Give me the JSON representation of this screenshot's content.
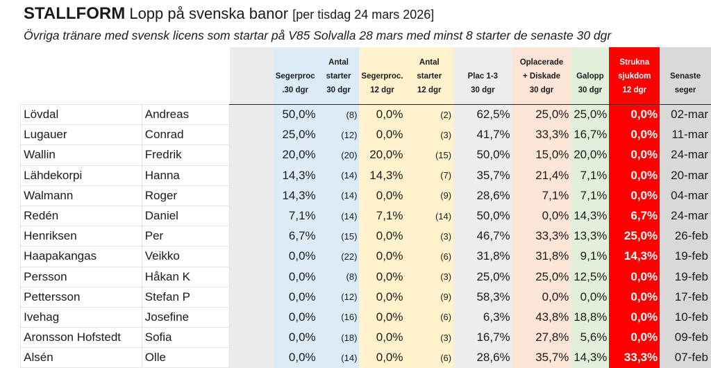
{
  "title": {
    "brand": "STALLFORM",
    "main": "Lopp på svenska banor",
    "date": "[per tisdag 24 mars 2026]"
  },
  "subtitle": "Övriga tränare med svensk licens som startar på V85 Solvalla 28 mars med minst 8 starter de senaste 30 dgr",
  "columns": [
    {
      "line1": "",
      "line2": "Segerproc",
      "line3": ".30 dgr"
    },
    {
      "line1": "Antal",
      "line2": "starter",
      "line3": "30 dgr"
    },
    {
      "line1": "",
      "line2": "Segerproc.",
      "line3": "12 dgr"
    },
    {
      "line1": "Antal",
      "line2": "starter",
      "line3": "12 dgr"
    },
    {
      "line1": "",
      "line2": "Plac 1-3",
      "line3": "30 dgr"
    },
    {
      "line1": "Oplacerade",
      "line2": "+ Diskade",
      "line3": "30 dgr"
    },
    {
      "line1": "",
      "line2": "Galopp",
      "line3": "30 dgr"
    },
    {
      "line1": "Strukna",
      "line2": "sjukdom",
      "line3": "12 dgr"
    },
    {
      "line1": "",
      "line2": "Senaste",
      "line3": "seger"
    }
  ],
  "colors": {
    "blue": "#ddebf7",
    "yellow": "#fff2cc",
    "plac": "#ededed",
    "pink": "#fce4d6",
    "green": "#e2efda",
    "red": "#ff0000",
    "last": "#d9d9d9"
  },
  "rows": [
    {
      "surname": "Lövdal",
      "first": "Andreas",
      "win30": "50,0%",
      "starts30": "(8)",
      "win12": "0,0%",
      "starts12": "(2)",
      "plac": "62,5%",
      "unplaced": "25,0%",
      "gallop": "25,0%",
      "scratched": "0,0%",
      "lastwin": "02-mar"
    },
    {
      "surname": "Lugauer",
      "first": "Conrad",
      "win30": "25,0%",
      "starts30": "(12)",
      "win12": "0,0%",
      "starts12": "(3)",
      "plac": "41,7%",
      "unplaced": "33,3%",
      "gallop": "16,7%",
      "scratched": "0,0%",
      "lastwin": "11-mar"
    },
    {
      "surname": "Wallin",
      "first": "Fredrik",
      "win30": "20,0%",
      "starts30": "(20)",
      "win12": "20,0%",
      "starts12": "(15)",
      "plac": "50,0%",
      "unplaced": "15,0%",
      "gallop": "20,0%",
      "scratched": "0,0%",
      "lastwin": "24-mar"
    },
    {
      "surname": "Lähdekorpi",
      "first": "Hanna",
      "win30": "14,3%",
      "starts30": "(14)",
      "win12": "14,3%",
      "starts12": "(7)",
      "plac": "35,7%",
      "unplaced": "21,4%",
      "gallop": "7,1%",
      "scratched": "0,0%",
      "lastwin": "20-mar"
    },
    {
      "surname": "Walmann",
      "first": "Roger",
      "win30": "14,3%",
      "starts30": "(14)",
      "win12": "0,0%",
      "starts12": "(9)",
      "plac": "28,6%",
      "unplaced": "7,1%",
      "gallop": "7,1%",
      "scratched": "0,0%",
      "lastwin": "04-mar"
    },
    {
      "surname": "Redén",
      "first": "Daniel",
      "win30": "7,1%",
      "starts30": "(14)",
      "win12": "7,1%",
      "starts12": "(14)",
      "plac": "50,0%",
      "unplaced": "0,0%",
      "gallop": "14,3%",
      "scratched": "6,7%",
      "lastwin": "24-mar"
    },
    {
      "surname": "Henriksen",
      "first": "Per",
      "win30": "6,7%",
      "starts30": "(15)",
      "win12": "0,0%",
      "starts12": "(3)",
      "plac": "46,7%",
      "unplaced": "33,3%",
      "gallop": "13,3%",
      "scratched": "25,0%",
      "lastwin": "26-feb"
    },
    {
      "surname": "Haapakangas",
      "first": "Veikko",
      "win30": "0,0%",
      "starts30": "(22)",
      "win12": "0,0%",
      "starts12": "(6)",
      "plac": "31,8%",
      "unplaced": "31,8%",
      "gallop": "9,1%",
      "scratched": "14,3%",
      "lastwin": "19-feb"
    },
    {
      "surname": "Persson",
      "first": "Håkan K",
      "win30": "0,0%",
      "starts30": "(8)",
      "win12": "0,0%",
      "starts12": "(3)",
      "plac": "25,0%",
      "unplaced": "25,0%",
      "gallop": "12,5%",
      "scratched": "0,0%",
      "lastwin": "19-feb"
    },
    {
      "surname": "Pettersson",
      "first": "Stefan P",
      "win30": "0,0%",
      "starts30": "(12)",
      "win12": "0,0%",
      "starts12": "(9)",
      "plac": "58,3%",
      "unplaced": "0,0%",
      "gallop": "0,0%",
      "scratched": "0,0%",
      "lastwin": "17-feb"
    },
    {
      "surname": "Ivehag",
      "first": "Josefine",
      "win30": "0,0%",
      "starts30": "(16)",
      "win12": "0,0%",
      "starts12": "(6)",
      "plac": "6,3%",
      "unplaced": "43,8%",
      "gallop": "18,8%",
      "scratched": "0,0%",
      "lastwin": "10-feb"
    },
    {
      "surname": "Aronsson Hofstedt",
      "first": "Sofia",
      "win30": "0,0%",
      "starts30": "(18)",
      "win12": "0,0%",
      "starts12": "(3)",
      "plac": "16,7%",
      "unplaced": "27,8%",
      "gallop": "5,6%",
      "scratched": "0,0%",
      "lastwin": "09-feb"
    },
    {
      "surname": "Alsén",
      "first": "Olle",
      "win30": "0,0%",
      "starts30": "(14)",
      "win12": "0,0%",
      "starts12": "(6)",
      "plac": "28,6%",
      "unplaced": "35,7%",
      "gallop": "14,3%",
      "scratched": "33,3%",
      "lastwin": "07-feb"
    }
  ]
}
